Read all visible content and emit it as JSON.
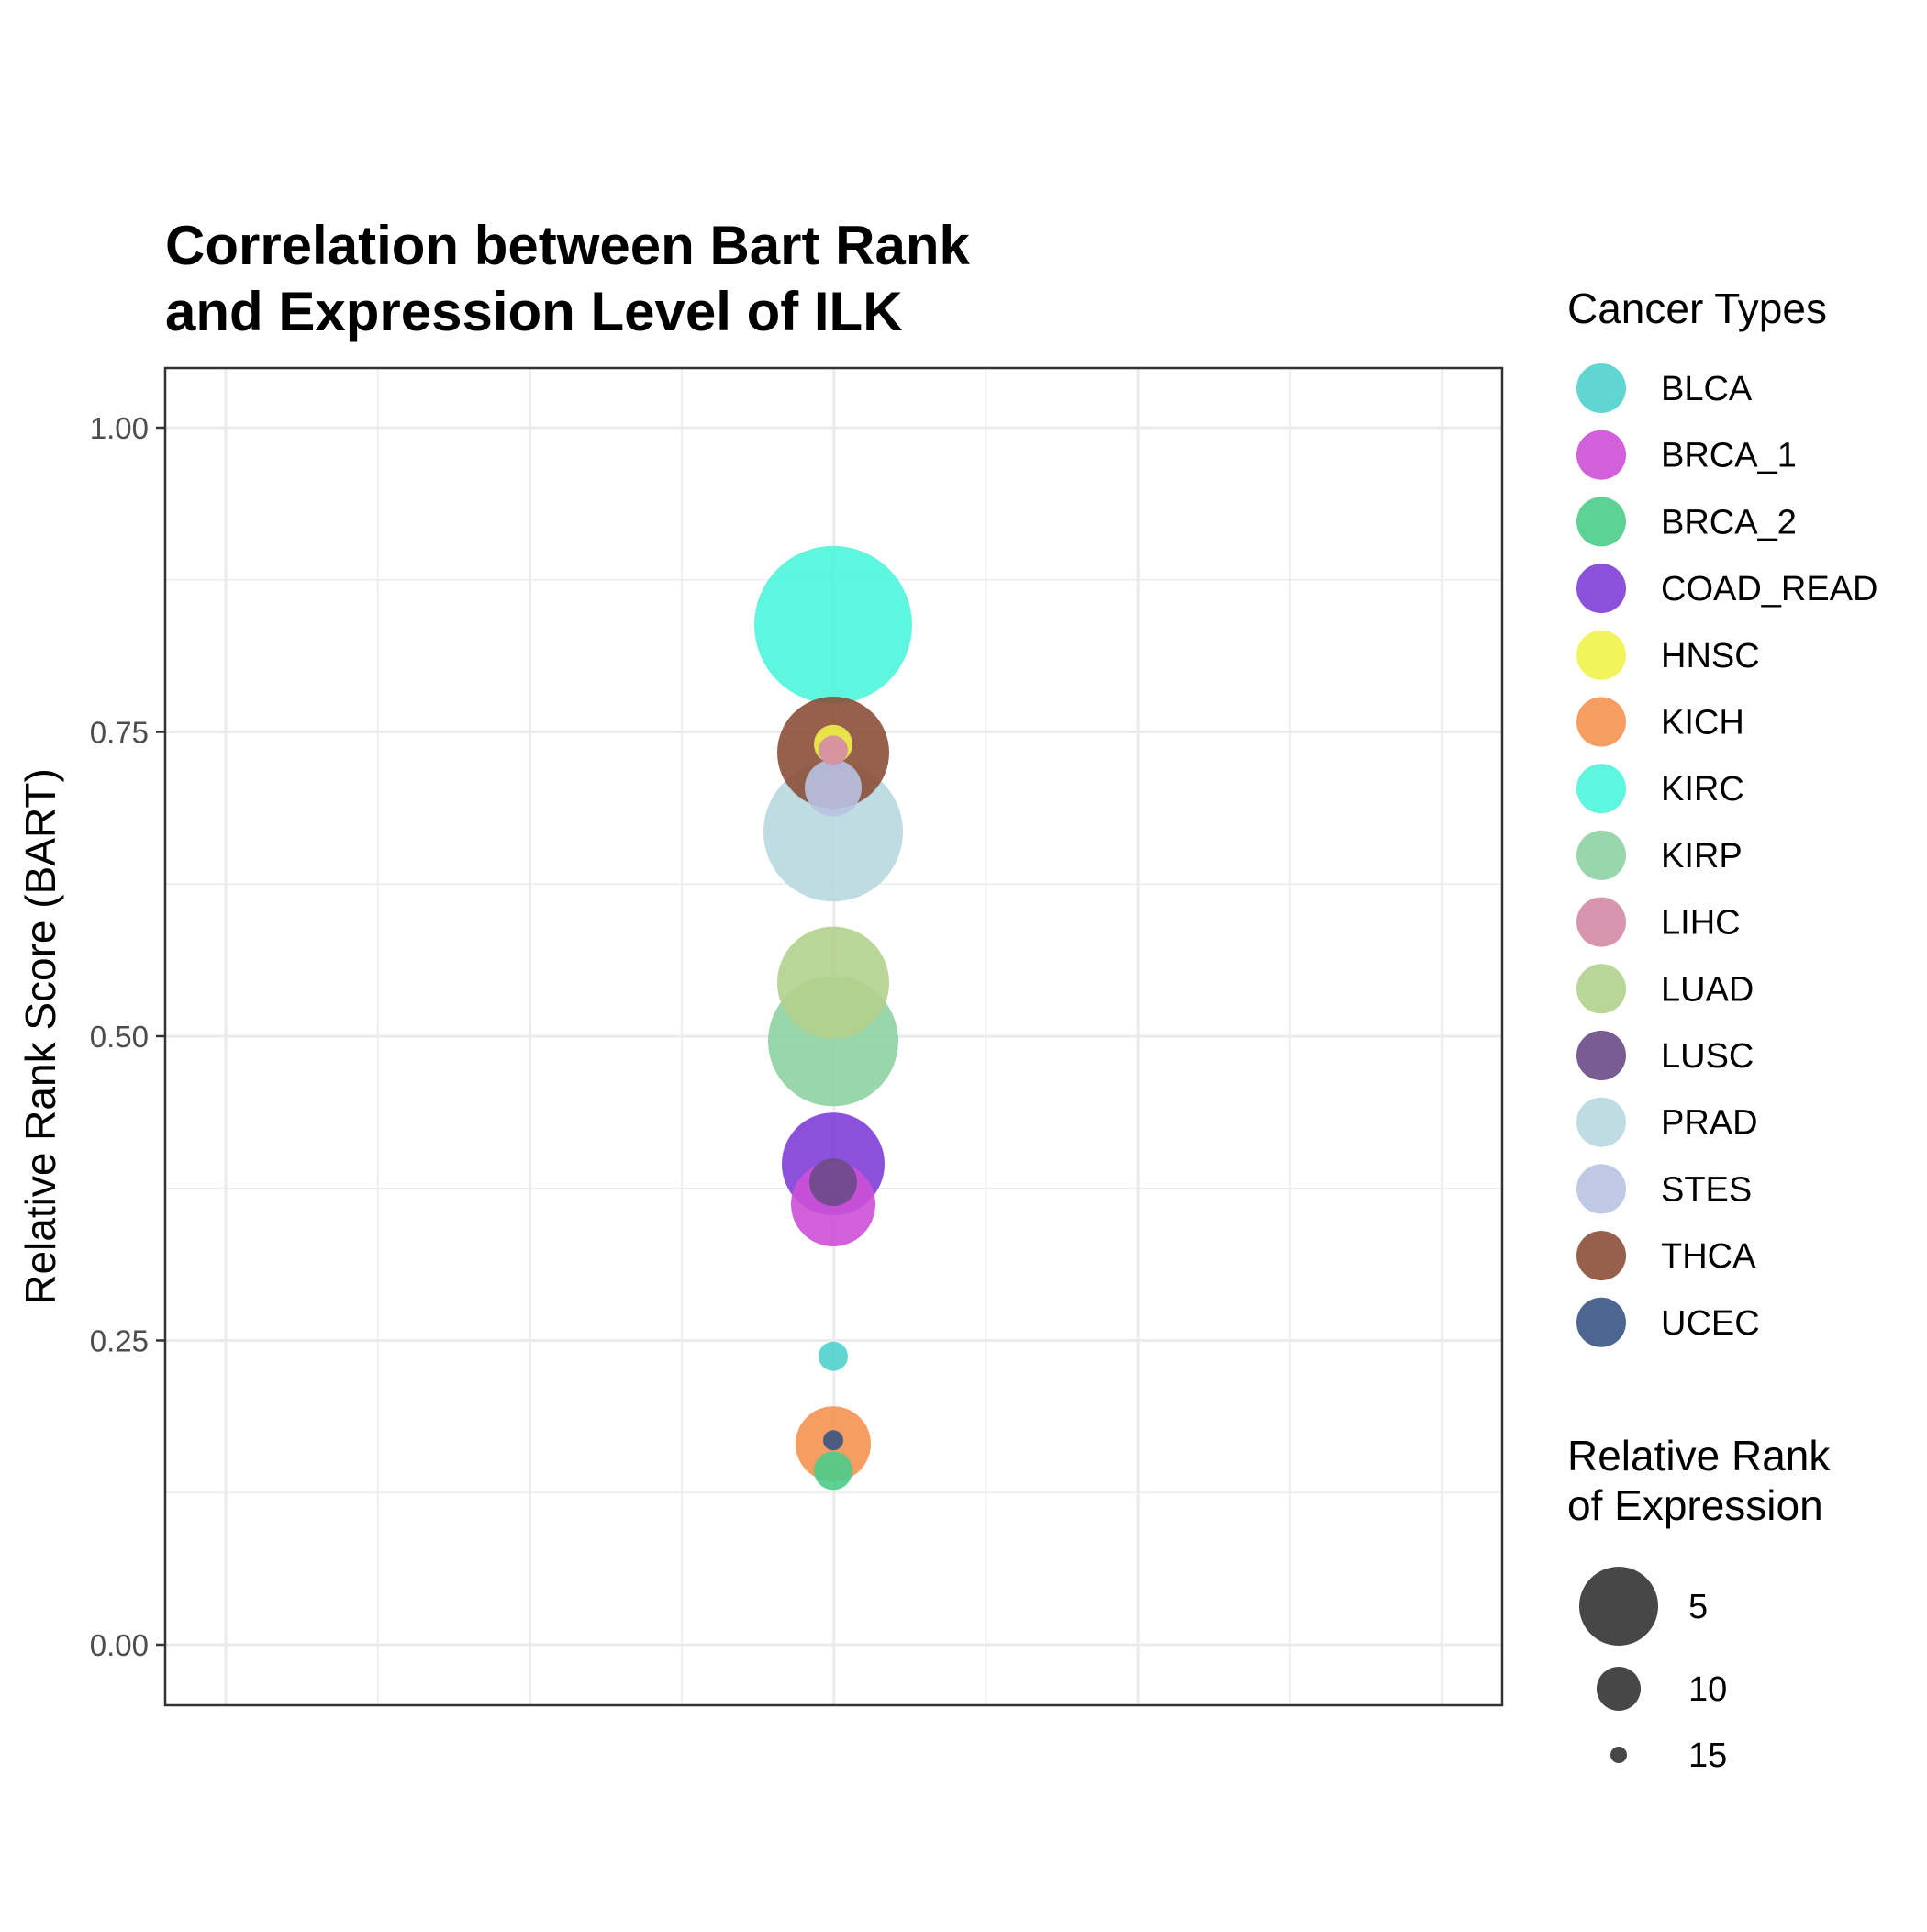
{
  "chart_data": {
    "type": "scatter",
    "title_lines": [
      "Correlation between Bart Rank",
      "and Expression Level of ILK"
    ],
    "xlabel": "",
    "ylabel": "Relative Rank Score (BART)",
    "ylim": [
      -0.05,
      1.05
    ],
    "y_ticks": [
      {
        "value": 0.0,
        "label": "0.00"
      },
      {
        "value": 0.25,
        "label": "0.25"
      },
      {
        "value": 0.5,
        "label": "0.50"
      },
      {
        "value": 0.75,
        "label": "0.75"
      },
      {
        "value": 1.0,
        "label": "1.00"
      }
    ],
    "y_minor_ticks": [
      0.125,
      0.375,
      0.625,
      0.875
    ],
    "x_gridlines": 9,
    "grid": true,
    "color_legend": {
      "title": "Cancer Types",
      "placement": "right"
    },
    "size_legend": {
      "title_lines": [
        "Relative Rank",
        "of Expression"
      ],
      "entries": [
        {
          "label": "5",
          "value": 5
        },
        {
          "label": "10",
          "value": 10
        },
        {
          "label": "15",
          "value": 15
        }
      ]
    },
    "series": [
      {
        "name": "BLCA",
        "color": "#4fd2cd",
        "y": 0.237,
        "expression_rank": 15
      },
      {
        "name": "BRCA_1",
        "color": "#cc4fd6",
        "y": 0.362,
        "expression_rank": 9
      },
      {
        "name": "BRCA_2",
        "color": "#4dcc8a",
        "y": 0.143,
        "expression_rank": 14
      },
      {
        "name": "COAD_READ",
        "color": "#7e3ed6",
        "y": 0.395,
        "expression_rank": 7
      },
      {
        "name": "HNSC",
        "color": "#f2f24a",
        "y": 0.74,
        "expression_rank": 14
      },
      {
        "name": "KICH",
        "color": "#f59250",
        "y": 0.165,
        "expression_rank": 10
      },
      {
        "name": "KIRC",
        "color": "#4df5dc",
        "y": 0.838,
        "expression_rank": 1
      },
      {
        "name": "KIRP",
        "color": "#8fd1a3",
        "y": 0.496,
        "expression_rank": 4
      },
      {
        "name": "LIHC",
        "color": "#d48ba5",
        "y": 0.735,
        "expression_rank": 15
      },
      {
        "name": "LUAD",
        "color": "#b2d08d",
        "y": 0.544,
        "expression_rank": 6
      },
      {
        "name": "LUSC",
        "color": "#6a4a86",
        "y": 0.38,
        "expression_rank": 13
      },
      {
        "name": "PRAD",
        "color": "#b8d8e0",
        "y": 0.668,
        "expression_rank": 3
      },
      {
        "name": "STES",
        "color": "#b8c2e2",
        "y": 0.704,
        "expression_rank": 12
      },
      {
        "name": "THCA",
        "color": "#8b4f3a",
        "y": 0.733,
        "expression_rank": 6
      },
      {
        "name": "UCEC",
        "color": "#3a5585",
        "y": 0.168,
        "expression_rank": 16
      }
    ]
  }
}
